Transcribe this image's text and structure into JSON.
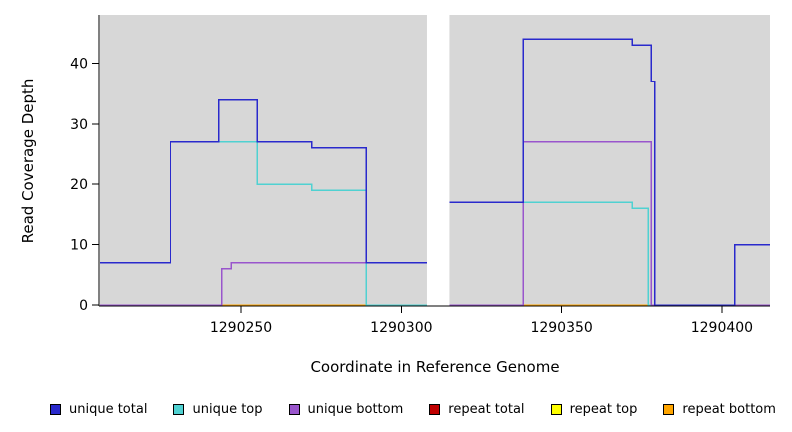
{
  "chart_data": {
    "type": "line",
    "style": "step",
    "title": "",
    "xlabel": "Coordinate in Reference Genome",
    "ylabel": "Read Coverage Depth",
    "xlim": [
      1290206,
      1290415
    ],
    "ylim": [
      0,
      48
    ],
    "x_ticks": [
      1290250,
      1290300,
      1290350,
      1290400
    ],
    "y_ticks": [
      0,
      10,
      20,
      30,
      40
    ],
    "panel_color": "#d7d7d7",
    "gap_regions": [
      [
        1290308,
        1290315
      ]
    ],
    "series": [
      {
        "name": "repeat top",
        "color": "#FFFF00",
        "segments": [
          [
            [
              1290206,
              0
            ],
            [
              1290308,
              0
            ]
          ],
          [
            [
              1290315,
              0
            ],
            [
              1290415,
              0
            ]
          ]
        ]
      },
      {
        "name": "repeat total",
        "color": "#C00000",
        "segments": [
          [
            [
              1290206,
              0
            ],
            [
              1290308,
              0
            ]
          ],
          [
            [
              1290315,
              0
            ],
            [
              1290415,
              0
            ]
          ]
        ]
      },
      {
        "name": "repeat bottom",
        "color": "#FFA500",
        "segments": [
          [
            [
              1290244,
              0
            ],
            [
              1290308,
              0
            ]
          ],
          [
            [
              1290338,
              0
            ],
            [
              1290378,
              0
            ]
          ]
        ]
      },
      {
        "name": "unique top",
        "color": "#4FD1D1",
        "segments": [
          [
            [
              1290206,
              7
            ],
            [
              1290228,
              27
            ],
            [
              1290255,
              20
            ],
            [
              1290272,
              19
            ],
            [
              1290289,
              0
            ],
            [
              1290308,
              0
            ]
          ],
          [
            [
              1290315,
              17
            ],
            [
              1290372,
              16
            ],
            [
              1290377,
              0
            ],
            [
              1290404,
              10
            ],
            [
              1290415,
              10
            ]
          ]
        ]
      },
      {
        "name": "unique bottom",
        "color": "#9955CC",
        "segments": [
          [
            [
              1290206,
              0
            ],
            [
              1290244,
              6
            ],
            [
              1290247,
              7
            ],
            [
              1290308,
              7
            ]
          ],
          [
            [
              1290315,
              0
            ],
            [
              1290338,
              27
            ],
            [
              1290378,
              0
            ],
            [
              1290415,
              0
            ]
          ]
        ]
      },
      {
        "name": "unique total",
        "color": "#2929CC",
        "segments": [
          [
            [
              1290206,
              7
            ],
            [
              1290228,
              27
            ],
            [
              1290243,
              34
            ],
            [
              1290255,
              27
            ],
            [
              1290272,
              26
            ],
            [
              1290289,
              7
            ],
            [
              1290308,
              7
            ]
          ],
          [
            [
              1290315,
              17
            ],
            [
              1290338,
              44
            ],
            [
              1290372,
              43
            ],
            [
              1290378,
              37
            ],
            [
              1290379,
              0
            ],
            [
              1290404,
              10
            ],
            [
              1290415,
              10
            ]
          ]
        ]
      }
    ],
    "legend": [
      {
        "label": "unique total",
        "color": "#2929CC"
      },
      {
        "label": "unique top",
        "color": "#4FD1D1"
      },
      {
        "label": "unique bottom",
        "color": "#9955CC"
      },
      {
        "label": "repeat total",
        "color": "#C00000"
      },
      {
        "label": "repeat top",
        "color": "#FFFF00"
      },
      {
        "label": "repeat bottom",
        "color": "#FFA500"
      }
    ]
  }
}
